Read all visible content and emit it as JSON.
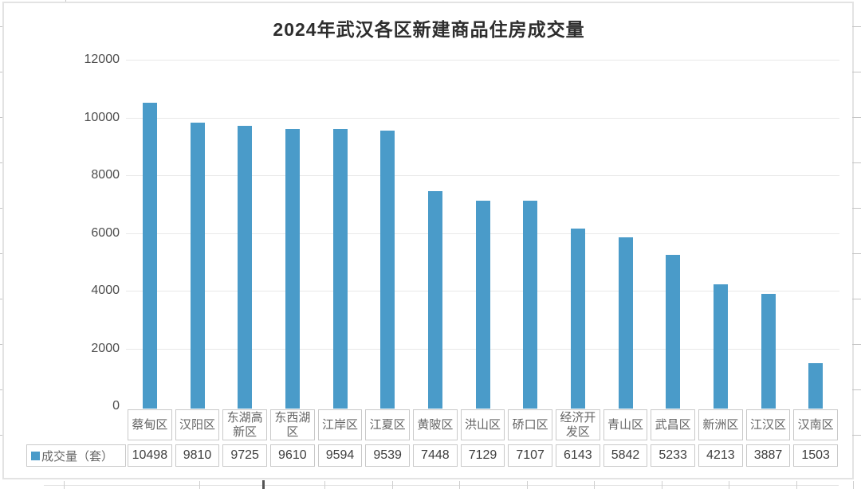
{
  "chart_data": {
    "type": "bar",
    "title": "2024年武汉各区新建商品住房成交量",
    "categories": [
      "蔡甸区",
      "汉阳区",
      "东湖高新区",
      "东西湖区",
      "江岸区",
      "江夏区",
      "黄陂区",
      "洪山区",
      "硚口区",
      "经济开发区",
      "青山区",
      "武昌区",
      "新洲区",
      "江汉区",
      "汉南区"
    ],
    "series": [
      {
        "name": "成交量（套）",
        "values": [
          10498,
          9810,
          9725,
          9610,
          9594,
          9539,
          7448,
          7129,
          7107,
          6143,
          5842,
          5233,
          4213,
          3887,
          1503
        ]
      }
    ],
    "xlabel": "",
    "ylabel": "",
    "ylim": [
      0,
      12000
    ],
    "yticks": [
      0,
      2000,
      4000,
      6000,
      8000,
      10000,
      12000
    ],
    "grid": true,
    "data_table": true,
    "legend_position": "data-table-left",
    "colors": {
      "bar": "#4a9bc9",
      "grid": "#e9e9e9",
      "cell_border": "#c9c9c9",
      "frame_border": "#e3e3e3",
      "title_text": "#2d2d2d",
      "axis_text": "#4d4d4d",
      "category_text": "#666666",
      "value_text": "#3f3f3f"
    }
  }
}
